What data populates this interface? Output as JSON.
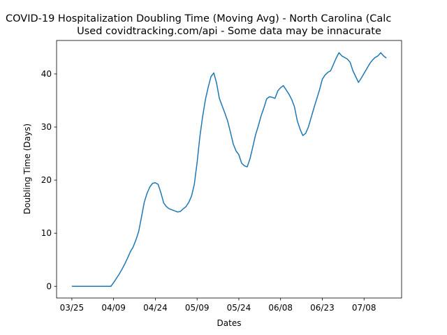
{
  "chart_data": {
    "type": "line",
    "title": "COVID-19 Hospitalization Doubling Time (Moving Avg) - North Carolina (Calc",
    "subtitle": "Used covidtracking.com/api - Some data may be innacurate",
    "x_label": "Dates",
    "y_label": "Doubling Time (Days)",
    "categories": [
      "03/25",
      null,
      null,
      null,
      null,
      null,
      null,
      null,
      null,
      null,
      null,
      null,
      null,
      null,
      null,
      "04/09",
      null,
      null,
      null,
      null,
      null,
      null,
      null,
      null,
      null,
      null,
      null,
      null,
      null,
      null,
      "04/24",
      null,
      null,
      null,
      null,
      null,
      null,
      null,
      null,
      null,
      null,
      null,
      null,
      null,
      null,
      "05/09",
      null,
      null,
      null,
      null,
      null,
      null,
      null,
      null,
      null,
      null,
      null,
      null,
      null,
      null,
      "05/24",
      null,
      null,
      null,
      null,
      null,
      null,
      null,
      null,
      null,
      null,
      null,
      null,
      null,
      null,
      "06/08",
      null,
      null,
      null,
      null,
      null,
      null,
      null,
      null,
      null,
      null,
      null,
      null,
      null,
      null,
      "06/23",
      null,
      null,
      null,
      null,
      null,
      null,
      null,
      null,
      null,
      null,
      null,
      null,
      null,
      null,
      "07/08",
      null,
      null,
      null,
      null,
      null,
      null,
      null,
      null
    ],
    "values": [
      0,
      0,
      0,
      0,
      0,
      0,
      0,
      0,
      0,
      0,
      0,
      0,
      0,
      0,
      0,
      0.7,
      1.5,
      2.3,
      3.2,
      4.2,
      5.3,
      6.5,
      7.4,
      8.7,
      10.3,
      13,
      15.8,
      17.5,
      18.7,
      19.4,
      19.5,
      19.2,
      17.6,
      15.7,
      15,
      14.6,
      14.4,
      14.2,
      14,
      14.1,
      14.6,
      15,
      15.8,
      17,
      19.2,
      23.3,
      28.2,
      32,
      35.2,
      37.5,
      39.5,
      40.2,
      38.3,
      35.4,
      34,
      32.6,
      31.1,
      29,
      26.8,
      25.5,
      24.8,
      23.2,
      22.7,
      22.5,
      24,
      26.2,
      28.5,
      30.2,
      32.1,
      33.6,
      35.3,
      35.7,
      35.6,
      35.4,
      36.8,
      37.4,
      37.8,
      37,
      36.2,
      35.2,
      33.8,
      31.2,
      29.6,
      28.4,
      28.8,
      30,
      31.8,
      33.6,
      35.3,
      37,
      39,
      39.8,
      40.3,
      40.6,
      41.8,
      43,
      44,
      43.4,
      43.1,
      42.8,
      42.2,
      40.6,
      39.5,
      38.4,
      39.2,
      40.1,
      41,
      41.9,
      42.6,
      43.1,
      43.4,
      44,
      43.4,
      43
    ],
    "color": "#1f77b4",
    "ylim": [
      -2.2,
      46.3
    ],
    "yticks": [
      0,
      10,
      20,
      30,
      40
    ]
  }
}
